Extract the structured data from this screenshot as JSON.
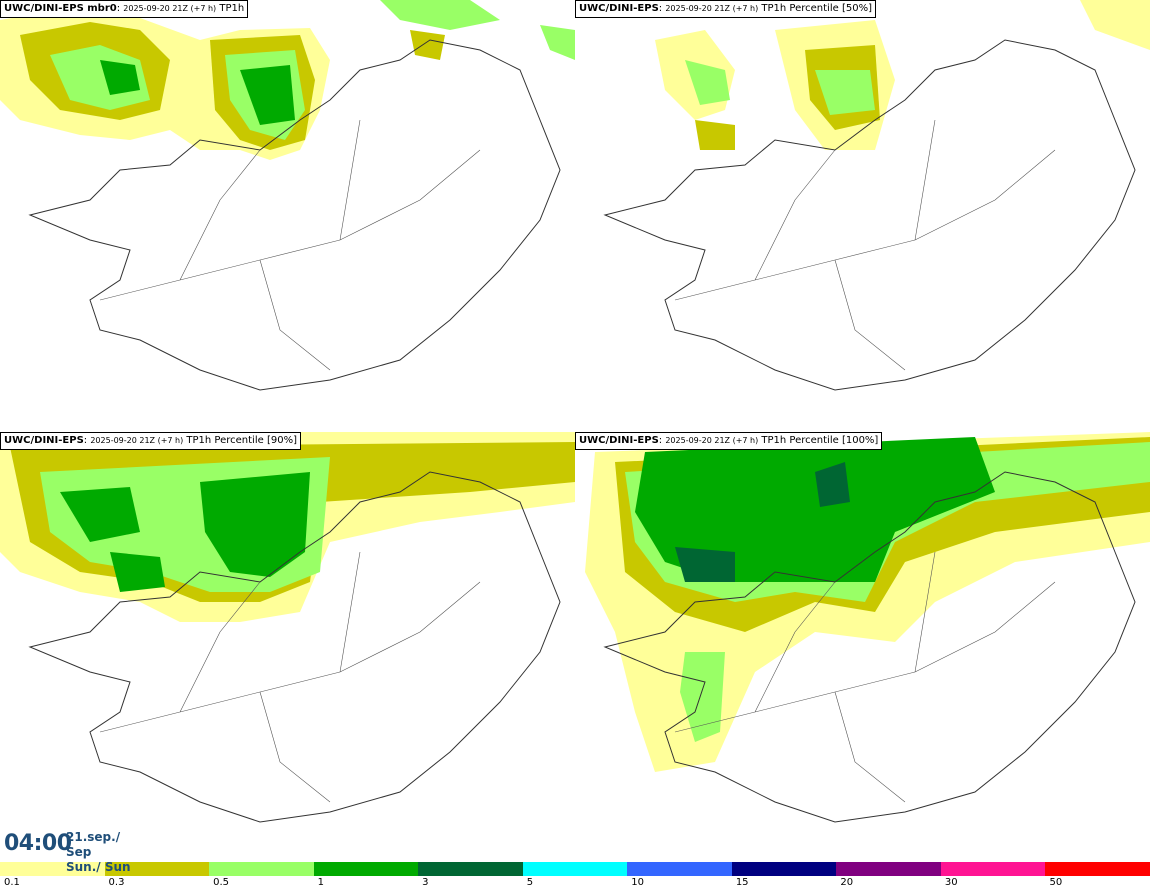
{
  "panels": [
    {
      "model": "UWC/DINI-EPS mbr0",
      "run": "2025-09-20 21Z (+7 h)",
      "field": "TP1h"
    },
    {
      "model": "UWC/DINI-EPS",
      "run": "2025-09-20 21Z (+7 h)",
      "field": "TP1h Percentile [50%]"
    },
    {
      "model": "UWC/DINI-EPS",
      "run": "2025-09-20 21Z (+7 h)",
      "field": "TP1h Percentile [90%]"
    },
    {
      "model": "UWC/DINI-EPS",
      "run": "2025-09-20 21Z (+7 h)",
      "field": "TP1h Percentile [100%]"
    }
  ],
  "valid_time": {
    "time": "04:00",
    "date_line1": "21.sep./ Sep",
    "date_line2": "Sun./ Sun"
  },
  "legend": {
    "colors": [
      "#ffff99",
      "#c8c800",
      "#99ff66",
      "#00aa00",
      "#006633",
      "#00ffff",
      "#3366ff",
      "#000080",
      "#800080",
      "#ff1493",
      "#ff0000"
    ],
    "labels": [
      "0.1",
      "0.3",
      "0.5",
      "1",
      "3",
      "5",
      "10",
      "15",
      "20",
      "30",
      "50"
    ]
  }
}
